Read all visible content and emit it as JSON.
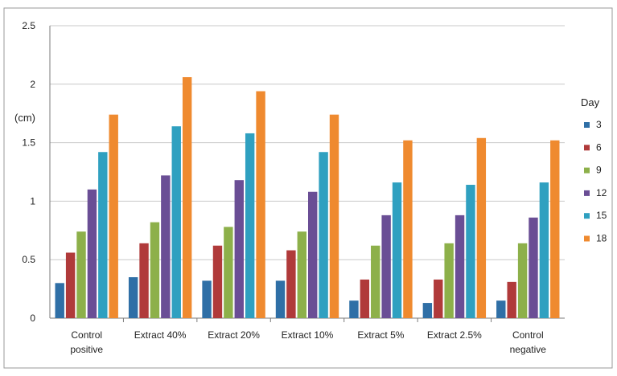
{
  "chart_data": {
    "type": "bar",
    "title": "",
    "xlabel": "",
    "ylabel": "(cm)",
    "ylim": [
      0,
      2.5
    ],
    "yticks": [
      0,
      0.5,
      1,
      1.5,
      2,
      2.5
    ],
    "ytick_labels": [
      "0",
      "0.5",
      "1",
      "1.5",
      "2",
      "2.5"
    ],
    "grid": true,
    "legend": {
      "title": "Day",
      "position": "right"
    },
    "categories": [
      [
        "Control",
        "positive"
      ],
      [
        "Extract 40%"
      ],
      [
        "Extract 20%"
      ],
      [
        "Extract 10%"
      ],
      [
        "Extract 5%"
      ],
      [
        "Extract 2.5%"
      ],
      [
        "Control",
        "negative"
      ]
    ],
    "series": [
      {
        "name": "3",
        "color": "#2f6fa6",
        "values": [
          0.3,
          0.35,
          0.32,
          0.32,
          0.15,
          0.13,
          0.15
        ]
      },
      {
        "name": "6",
        "color": "#b03a3a",
        "values": [
          0.56,
          0.64,
          0.62,
          0.58,
          0.33,
          0.33,
          0.31
        ]
      },
      {
        "name": "9",
        "color": "#8db04a",
        "values": [
          0.74,
          0.82,
          0.78,
          0.74,
          0.62,
          0.64,
          0.64
        ]
      },
      {
        "name": "12",
        "color": "#6a4e95",
        "values": [
          1.1,
          1.22,
          1.18,
          1.08,
          0.88,
          0.88,
          0.86
        ]
      },
      {
        "name": "15",
        "color": "#2fa0c0",
        "values": [
          1.42,
          1.64,
          1.58,
          1.42,
          1.16,
          1.14,
          1.16
        ]
      },
      {
        "name": "18",
        "color": "#ef8a2f",
        "values": [
          1.74,
          2.06,
          1.94,
          1.74,
          1.52,
          1.54,
          1.52
        ]
      }
    ]
  }
}
